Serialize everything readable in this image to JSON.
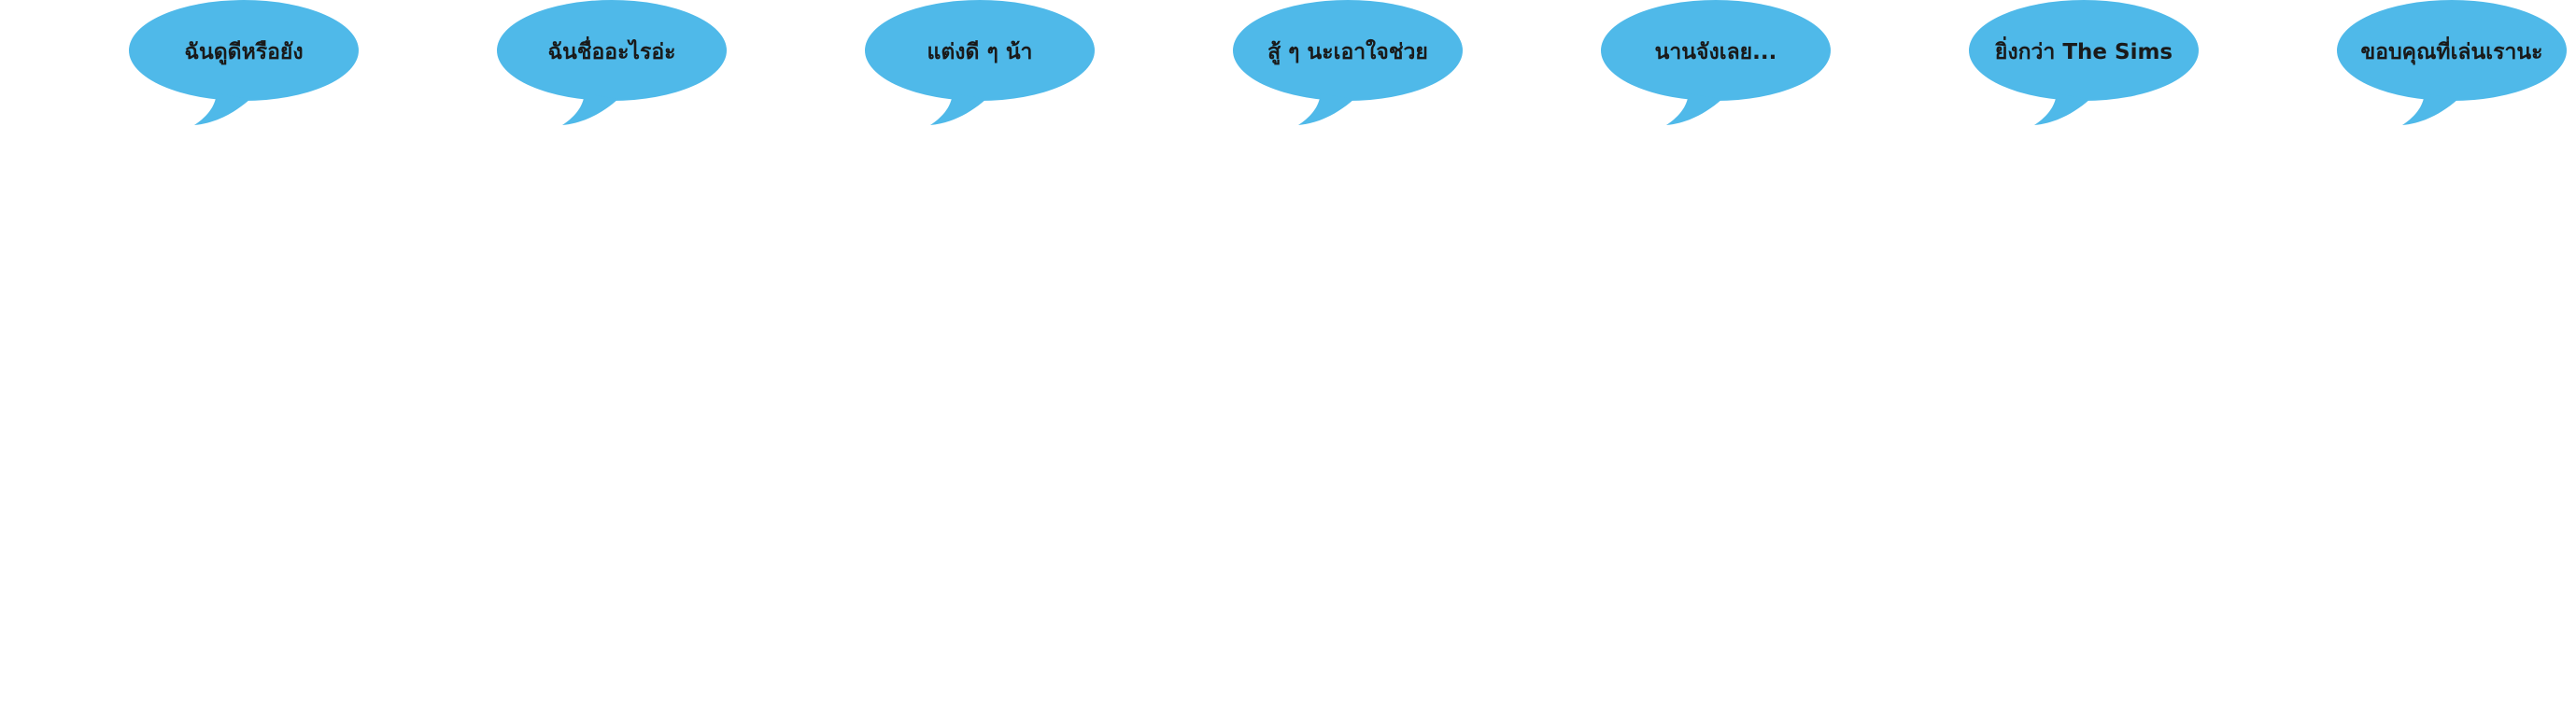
{
  "bubble_color": "#4fb9e9",
  "text_color": "#1a1a1a",
  "background_color": "#ffffff",
  "bubbles": [
    {
      "text": "ฉันดูดีหรือยัง"
    },
    {
      "text": "ฉันชื่ออะไรอ่ะ"
    },
    {
      "text": "แต่งดี ๆ น้า"
    },
    {
      "text": "สู้ ๆ นะเอาใจช่วย"
    },
    {
      "text": "นานจังเลย..."
    },
    {
      "text": "ยิ่งกว่า The Sims"
    },
    {
      "text": "ขอบคุณที่เล่นเรานะ"
    }
  ]
}
